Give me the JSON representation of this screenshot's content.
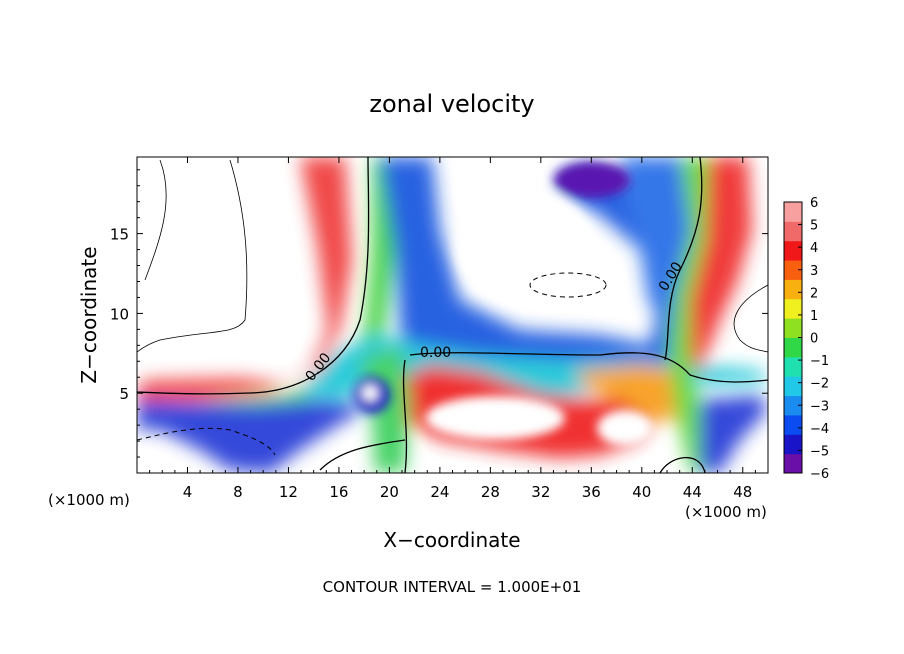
{
  "chart_data": {
    "type": "heatmap",
    "title": "zonal velocity",
    "xlabel": "X−coordinate",
    "ylabel": "Z−coordinate",
    "x_unit_label": "(×1000 m)",
    "x_unit_label_right": "(×1000 m)",
    "footer": "CONTOUR INTERVAL = 1.000E+01",
    "xlim": [
      0,
      50
    ],
    "ylim": [
      0,
      19.8
    ],
    "x_ticks": [
      4,
      8,
      12,
      16,
      20,
      24,
      28,
      32,
      36,
      40,
      44,
      48
    ],
    "y_ticks": [
      5,
      10,
      15
    ],
    "colorbar": {
      "min": -6,
      "max": 6,
      "ticks": [
        "6",
        "5",
        "4",
        "3",
        "2",
        "1",
        "0",
        "−1",
        "−2",
        "−3",
        "−4",
        "−5",
        "−6"
      ],
      "colors": [
        "#6a0fa8",
        "#1a14c8",
        "#0a4cf0",
        "#1a8cf0",
        "#22c8e8",
        "#20e0b0",
        "#30d848",
        "#8ee020",
        "#f0f020",
        "#f8b010",
        "#f86010",
        "#f01818",
        "#f06a6a",
        "#f8a0a0"
      ]
    },
    "contour_labels": [
      "0.00",
      "0.00",
      "0.00"
    ],
    "fields": {
      "left_jet_x": 14.5,
      "upper_core_x": 21.5,
      "low_band_z": 5.5,
      "right_jet_x": 44.5
    }
  }
}
